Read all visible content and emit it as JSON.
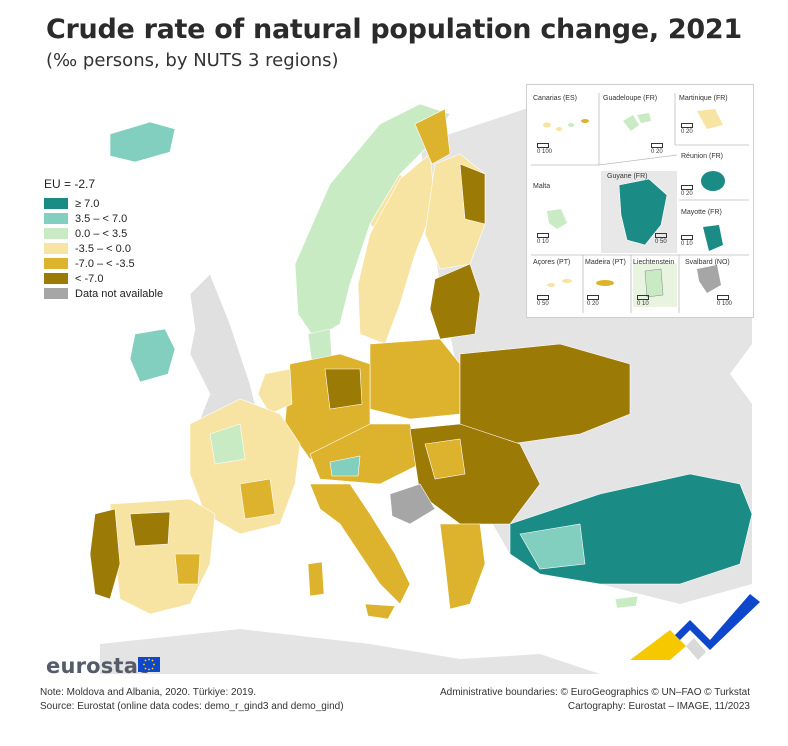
{
  "title": "Crude rate of natural population change, 2021",
  "subtitle": "(‰ persons, by NUTS 3 regions)",
  "legend": {
    "title": "EU = -2.7",
    "items": [
      {
        "label": "≥ 7.0",
        "color": "#1b8b86"
      },
      {
        "label": "3.5 – < 7.0",
        "color": "#82cfc0"
      },
      {
        "label": "0.0 – < 3.5",
        "color": "#c8ebc4"
      },
      {
        "label": "-3.5 – < 0.0",
        "color": "#f7e3a2"
      },
      {
        "label": "-7.0 – < -3.5",
        "color": "#ddb22c"
      },
      {
        "label": "< -7.0",
        "color": "#9c7a06"
      },
      {
        "label": "Data not available",
        "color": "#a6a6a6"
      }
    ]
  },
  "insets": {
    "canarias": "Canarias (ES)",
    "guadeloupe": "Guadeloupe (FR)",
    "martinique": "Martinique (FR)",
    "reunion": "Réunion (FR)",
    "malta": "Malta",
    "guyane": "Guyane (FR)",
    "mayotte": "Mayotte (FR)",
    "acores": "Açores (PT)",
    "madeira": "Madeira (PT)",
    "liechtenstein": "Liechtenstein",
    "svalbard": "Svalbard (NO)",
    "scales": {
      "canarias": "0   100",
      "guadeloupe": "0   20",
      "martinique": "0   20",
      "reunion": "0   20",
      "malta": "0   10",
      "guyane": "0   50",
      "mayotte": "0   10",
      "acores": "0   50",
      "madeira": "0   20",
      "liechtenstein": "0   10",
      "svalbard": "0 100"
    }
  },
  "logo": "eurostat",
  "notes": {
    "line1": "Note: Moldova and Albania, 2020. Türkiye: 2019.",
    "line2": "Source: Eurostat (online data codes: demo_r_gind3 and demo_gind)"
  },
  "credits": {
    "line1": "Administrative boundaries: © EuroGeographics © UN–FAO © Turkstat",
    "line2": "Cartography: Eurostat – IMAGE, 11/2023"
  }
}
